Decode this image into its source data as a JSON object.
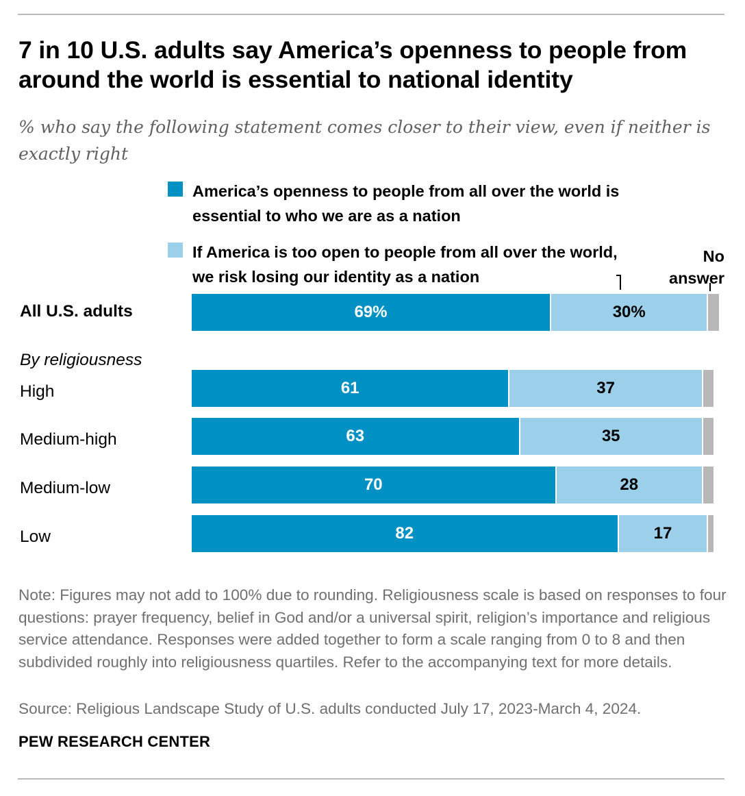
{
  "title": "7 in 10 U.S. adults say America’s openness to people from around the world is essential to national identity",
  "subtitle": "% who say the following statement comes closer to their view, even if neither is exactly right",
  "colors": {
    "dark_blue": "#0091c4",
    "light_blue": "#9ccfe9",
    "gray": "#b8b8b8"
  },
  "chart_data": {
    "type": "bar",
    "orientation": "horizontal",
    "stacked": true,
    "xlim": [
      0,
      100
    ],
    "legend": [
      "America’s openness to people from all over the world is essential to who we are as a nation",
      "If America is too open to people from all over the world, we risk losing our identity as a nation",
      "No answer"
    ],
    "group_label": "By religiousness",
    "categories": [
      "All U.S. adults",
      "High",
      "Medium-high",
      "Medium-low",
      "Low"
    ],
    "series": [
      {
        "name": "America’s openness to people from all over the world is essential to who we are as a nation",
        "values": [
          69,
          61,
          63,
          70,
          82
        ],
        "labels": [
          "69%",
          "61",
          "63",
          "70",
          "82"
        ]
      },
      {
        "name": "If America is too open to people from all over the world, we risk losing our identity as a nation",
        "values": [
          30,
          37,
          35,
          28,
          17
        ],
        "labels": [
          "30%",
          "37",
          "35",
          "28",
          "17"
        ]
      },
      {
        "name": "No answer",
        "values": [
          2,
          2,
          2,
          2,
          1
        ]
      }
    ]
  },
  "note": "Note: Figures may not add to 100% due to rounding. Religiousness scale is based on responses to four questions: prayer frequency, belief in God and/or a universal spirit, religion’s importance and religious service attendance. Responses were added together to form a scale ranging from 0 to 8 and then subdivided roughly into religiousness quartiles. Refer to the accompanying text for more details.",
  "source": "Source: Religious Landscape Study of U.S. adults conducted July 17, 2023-March 4, 2024.",
  "brand": "PEW RESEARCH CENTER"
}
